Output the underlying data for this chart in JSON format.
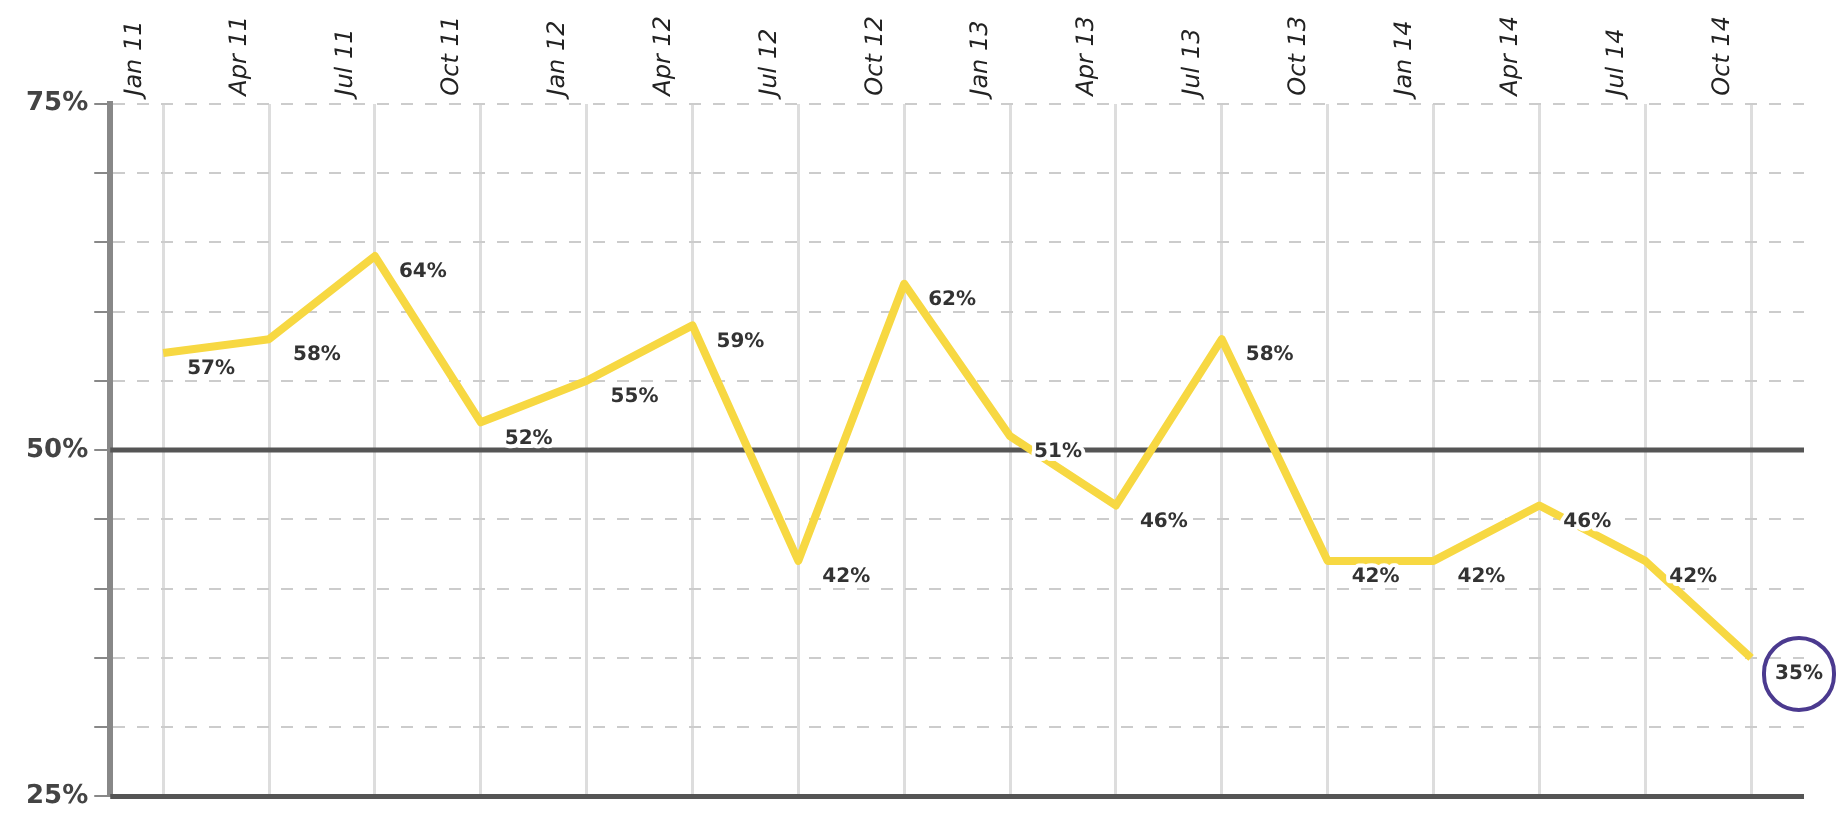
{
  "chart_data": {
    "type": "line",
    "categories": [
      "Jan 11",
      "Apr 11",
      "Jul 11",
      "Oct 11",
      "Jan 12",
      "Apr 12",
      "Jul 12",
      "Oct 12",
      "Jan 13",
      "Apr 13",
      "Jul 13",
      "Oct 13",
      "Jan 14",
      "Apr 14",
      "Jul 14",
      "Oct 14"
    ],
    "series": [
      {
        "color": "#f7d842",
        "values": [
          57,
          58,
          64,
          52,
          55,
          59,
          42,
          62,
          51,
          46,
          58,
          42,
          42,
          46,
          42,
          35
        ],
        "value_labels": [
          "57%",
          "58%",
          "64%",
          "52%",
          "55%",
          "59%",
          "42%",
          "62%",
          "51%",
          "46%",
          "58%",
          "42%",
          "42%",
          "46%",
          "42%",
          "35%"
        ]
      }
    ],
    "ylim": [
      25,
      75
    ],
    "yticks": [
      {
        "value": 25,
        "label": "25%"
      },
      {
        "value": 30,
        "label": null
      },
      {
        "value": 35,
        "label": null
      },
      {
        "value": 40,
        "label": null
      },
      {
        "value": 45,
        "label": null
      },
      {
        "value": 50,
        "label": "50%"
      },
      {
        "value": 55,
        "label": null
      },
      {
        "value": 60,
        "label": null
      },
      {
        "value": 65,
        "label": null
      },
      {
        "value": 70,
        "label": null
      },
      {
        "value": 75,
        "label": "75%"
      }
    ],
    "ref_lines": [
      {
        "axis": "y",
        "value": 50,
        "color": "#555555"
      }
    ],
    "grid": true,
    "legend": false,
    "marker": "none",
    "line_style": "solid"
  }
}
